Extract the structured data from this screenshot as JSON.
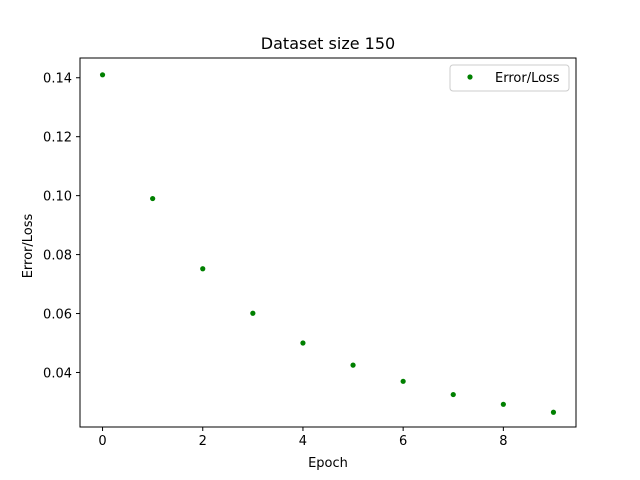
{
  "chart_data": {
    "type": "scatter",
    "title": "Dataset size 150",
    "xlabel": "Epoch",
    "ylabel": "Error/Loss",
    "xlim": [
      -0.45,
      9.45
    ],
    "ylim": [
      0.0215,
      0.1467
    ],
    "xticks": [
      0,
      2,
      4,
      6,
      8
    ],
    "xtick_labels": [
      "0",
      "2",
      "4",
      "6",
      "8"
    ],
    "yticks": [
      0.04,
      0.06,
      0.08,
      0.1,
      0.12,
      0.14
    ],
    "ytick_labels": [
      "0.04",
      "0.06",
      "0.08",
      "0.10",
      "0.12",
      "0.14"
    ],
    "grid": false,
    "legend_position": "top-right",
    "series": [
      {
        "name": "Error/Loss",
        "color": "#008000",
        "marker": "point",
        "x": [
          0,
          1,
          2,
          3,
          4,
          5,
          6,
          7,
          8,
          9
        ],
        "y": [
          0.141,
          0.099,
          0.0752,
          0.0601,
          0.05,
          0.0425,
          0.037,
          0.0325,
          0.0292,
          0.0265
        ]
      }
    ]
  }
}
